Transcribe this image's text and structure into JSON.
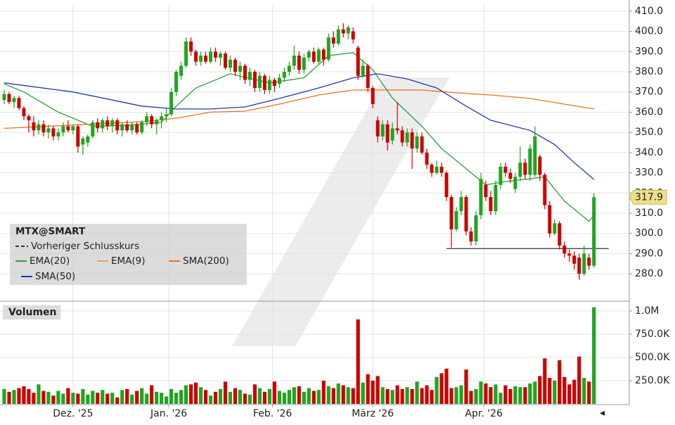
{
  "chart_data": {
    "type": "candlestick",
    "colors": {
      "up": "#1fa51f",
      "down": "#cc0000"
    },
    "open": [
      366,
      369,
      365,
      367,
      362,
      358,
      355,
      351,
      354,
      350,
      352,
      348,
      350,
      353,
      351,
      353,
      344,
      345,
      348,
      355,
      352,
      356,
      353,
      356,
      351,
      354,
      351,
      354,
      350,
      355,
      358,
      354,
      356,
      358,
      359,
      370,
      378,
      383,
      395,
      390,
      385,
      388,
      385,
      390,
      387,
      389,
      382,
      386,
      380,
      383,
      376,
      380,
      372,
      378,
      371,
      376,
      374,
      377,
      380,
      383,
      388,
      381,
      387,
      390,
      385,
      391,
      386,
      397,
      394,
      401,
      399,
      400,
      392,
      378,
      383,
      372,
      356,
      348,
      354,
      346,
      352,
      351,
      345,
      350,
      342,
      348,
      340,
      334,
      330,
      333,
      330,
      318,
      302,
      311,
      318,
      301,
      296,
      309,
      324,
      318,
      311,
      324,
      333,
      330,
      322,
      328,
      335,
      329,
      329,
      338,
      329,
      314,
      300,
      305,
      294,
      290,
      289,
      288,
      280,
      288,
      284
    ],
    "high": [
      371,
      370,
      368,
      368,
      363,
      359,
      358,
      356,
      356,
      354,
      353,
      352,
      355,
      356,
      354,
      354,
      348,
      349,
      356,
      357,
      357,
      358,
      357,
      357,
      355,
      356,
      355,
      355,
      356,
      360,
      359,
      357,
      360,
      362,
      372,
      381,
      385,
      397,
      397,
      391,
      390,
      390,
      392,
      392,
      390,
      390,
      388,
      387,
      385,
      384,
      382,
      381,
      380,
      379,
      378,
      377,
      379,
      382,
      385,
      393,
      390,
      389,
      391,
      392,
      392,
      392,
      399,
      400,
      403,
      404,
      403,
      402,
      393,
      386,
      384,
      373,
      358,
      356,
      356,
      355,
      365,
      353,
      352,
      352,
      350,
      350,
      342,
      335,
      336,
      335,
      331,
      319,
      313,
      321,
      319,
      303,
      311,
      330,
      326,
      321,
      326,
      335,
      335,
      332,
      330,
      343,
      337,
      344,
      353,
      339,
      330,
      316,
      307,
      306,
      296,
      292,
      291,
      290,
      294,
      290,
      320
    ],
    "low": [
      364,
      364,
      362,
      361,
      356,
      350,
      348,
      349,
      348,
      347,
      346,
      346,
      348,
      350,
      349,
      340,
      339,
      343,
      347,
      350,
      350,
      351,
      350,
      349,
      348,
      350,
      349,
      349,
      349,
      353,
      352,
      349,
      352,
      355,
      358,
      368,
      376,
      382,
      388,
      383,
      383,
      384,
      384,
      385,
      383,
      381,
      380,
      378,
      376,
      374,
      373,
      370,
      370,
      369,
      369,
      370,
      372,
      375,
      378,
      381,
      379,
      379,
      385,
      384,
      384,
      383,
      385,
      392,
      393,
      397,
      396,
      394,
      376,
      377,
      370,
      362,
      345,
      346,
      341,
      344,
      349,
      343,
      343,
      332,
      340,
      339,
      332,
      328,
      329,
      328,
      316,
      293,
      301,
      309,
      299,
      294,
      294,
      307,
      316,
      309,
      309,
      322,
      328,
      325,
      320,
      326,
      327,
      326,
      328,
      326,
      312,
      298,
      299,
      292,
      288,
      286,
      282,
      277,
      279,
      282,
      283
    ],
    "close": [
      369,
      365,
      367,
      362,
      358,
      356,
      351,
      354,
      350,
      352,
      348,
      350,
      353,
      351,
      353,
      343,
      347,
      348,
      355,
      352,
      356,
      353,
      356,
      351,
      354,
      351,
      354,
      350,
      355,
      358,
      354,
      356,
      358,
      359,
      370,
      380,
      383,
      395,
      390,
      385,
      388,
      385,
      390,
      387,
      389,
      382,
      386,
      380,
      383,
      376,
      380,
      372,
      378,
      371,
      376,
      373,
      377,
      380,
      383,
      388,
      381,
      387,
      390,
      385,
      391,
      386,
      397,
      394,
      401,
      399,
      402,
      396,
      378,
      383,
      372,
      364,
      348,
      354,
      345,
      352,
      351,
      345,
      350,
      342,
      348,
      340,
      334,
      330,
      333,
      330,
      318,
      302,
      311,
      318,
      301,
      296,
      309,
      327,
      318,
      311,
      324,
      333,
      330,
      327,
      328,
      335,
      329,
      342,
      348,
      329,
      314,
      300,
      305,
      294,
      290,
      289,
      285,
      280,
      290,
      284,
      317.9
    ],
    "volume": [
      160000,
      130000,
      150000,
      170000,
      190000,
      160000,
      120000,
      210000,
      140000,
      130000,
      90000,
      140000,
      110000,
      170000,
      120000,
      110000,
      160000,
      100000,
      140000,
      120000,
      150000,
      110000,
      120000,
      70000,
      150000,
      160000,
      100000,
      140000,
      170000,
      110000,
      200000,
      130000,
      120000,
      80000,
      160000,
      120000,
      150000,
      200000,
      210000,
      230000,
      180000,
      150000,
      90000,
      130000,
      160000,
      240000,
      130000,
      170000,
      150000,
      110000,
      100000,
      210000,
      170000,
      130000,
      160000,
      240000,
      140000,
      120000,
      150000,
      180000,
      190000,
      130000,
      170000,
      140000,
      150000,
      250000,
      190000,
      170000,
      220000,
      200000,
      180000,
      170000,
      910000,
      230000,
      320000,
      250000,
      300000,
      180000,
      160000,
      150000,
      200000,
      160000,
      180000,
      160000,
      240000,
      170000,
      200000,
      150000,
      290000,
      330000,
      380000,
      170000,
      180000,
      200000,
      370000,
      140000,
      160000,
      240000,
      220000,
      180000,
      210000,
      120000,
      200000,
      160000,
      190000,
      180000,
      180000,
      220000,
      240000,
      300000,
      490000,
      280000,
      250000,
      470000,
      290000,
      210000,
      260000,
      510000,
      280000,
      240000,
      1040000
    ],
    "xlim": [
      -0.86,
      127.2
    ],
    "xticks": [
      {
        "value": 14,
        "label": "Dez. '25"
      },
      {
        "value": 33.5,
        "label": "Jan. '26"
      },
      {
        "value": 54.6,
        "label": "Feb. '26"
      },
      {
        "value": 75,
        "label": "März '26"
      },
      {
        "value": 97.6,
        "label": "Apr. '26"
      }
    ],
    "ylim": [
      267.5,
      413.8
    ],
    "yticks": [
      {
        "value": 280,
        "label": "280.0"
      },
      {
        "value": 290,
        "label": "290.0"
      },
      {
        "value": 300,
        "label": "300.0"
      },
      {
        "value": 310,
        "label": "310.0"
      },
      {
        "value": 320,
        "label": "320.0"
      },
      {
        "value": 330,
        "label": "330.0"
      },
      {
        "value": 340,
        "label": "340.0"
      },
      {
        "value": 350,
        "label": "350.0"
      },
      {
        "value": 360,
        "label": "360.0"
      },
      {
        "value": 370,
        "label": "370.0"
      },
      {
        "value": 380,
        "label": "380.0"
      },
      {
        "value": 390,
        "label": "390.0"
      },
      {
        "value": 400,
        "label": "400.0"
      },
      {
        "value": 410,
        "label": "410.0"
      }
    ],
    "volume_label": "Volumen",
    "volume_ylim": [
      0,
      1076000
    ],
    "volume_yticks": [
      {
        "value": 250000,
        "label": "250.0K"
      },
      {
        "value": 500000,
        "label": "500.0K"
      },
      {
        "value": 750000,
        "label": "750.0K"
      },
      {
        "value": 1000000,
        "label": "1.0M"
      }
    ],
    "grid": true,
    "symbol": "MTX@SMART",
    "previous_close": {
      "name": "Vorheriger Schlusskurs",
      "color": "#333333"
    },
    "indicators": [
      {
        "name": "EMA(20)",
        "color": "#2e9e3a",
        "x": [
          0,
          4,
          11,
          18,
          25,
          32,
          35,
          39,
          46,
          54,
          61,
          66,
          71,
          75,
          79,
          85,
          89,
          94,
          98,
          102,
          107,
          110,
          114,
          119,
          120
        ],
        "values": [
          374,
          370,
          360,
          353,
          353.5,
          355,
          363,
          372,
          379,
          374.5,
          377,
          388,
          389.5,
          381,
          367,
          353,
          342,
          332,
          324,
          325.7,
          327,
          328,
          316,
          306,
          309
        ]
      },
      {
        "name": "EMA(9)",
        "color": "#e8a64a"
      },
      {
        "name": "SMA(200)",
        "color": "#e8731c",
        "x": [
          0,
          14,
          28,
          35,
          42,
          49,
          56,
          64,
          71,
          76,
          85,
          92,
          99,
          107,
          114,
          120
        ],
        "values": [
          352,
          353.6,
          355.3,
          357,
          360,
          360.5,
          364,
          368.5,
          371,
          371,
          371,
          369.6,
          368.5,
          366.8,
          364,
          361.6
        ]
      },
      {
        "name": "SMA(50)",
        "color": "#1f3aa8",
        "x": [
          0,
          14,
          28,
          35,
          42,
          49,
          56,
          64,
          71,
          76,
          82,
          88,
          94,
          99,
          107,
          112,
          116,
          120
        ],
        "values": [
          374.5,
          370,
          363,
          361.6,
          361.6,
          362.6,
          366.8,
          372,
          377,
          379,
          376.5,
          372,
          363,
          356,
          351,
          344,
          335,
          326.7
        ]
      }
    ],
    "reference_line": {
      "value": 292.5,
      "x": [
        90,
        123
      ]
    }
  }
}
